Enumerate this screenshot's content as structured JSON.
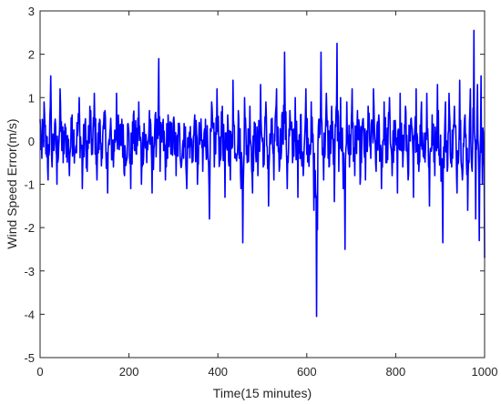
{
  "chart_data": {
    "type": "line",
    "title": "",
    "xlabel": "Time(15 minutes)",
    "ylabel": "Wind Speed Error(m/s)",
    "xlim": [
      0,
      1000
    ],
    "ylim": [
      -5,
      3
    ],
    "xticks": [
      0,
      200,
      400,
      600,
      800,
      1000
    ],
    "yticks": [
      -5,
      -4,
      -3,
      -2,
      -1,
      0,
      1,
      2,
      3
    ],
    "grid": false,
    "legend": "none",
    "series": [
      {
        "color": "#0000ff",
        "n_points": 1000,
        "x": [
          0,
          4,
          9,
          13,
          18,
          24,
          27,
          33,
          38,
          45,
          52,
          58,
          66,
          72,
          80,
          88,
          95,
          101,
          106,
          112,
          118,
          122,
          128,
          134,
          140,
          146,
          152,
          158,
          165,
          172,
          178,
          184,
          190,
          198,
          204,
          210,
          216,
          222,
          228,
          234,
          240,
          246,
          252,
          258,
          263,
          267,
          270,
          276,
          282,
          288,
          294,
          300,
          306,
          312,
          318,
          324,
          330,
          336,
          342,
          348,
          354,
          360,
          366,
          372,
          378,
          381,
          386,
          392,
          398,
          404,
          410,
          416,
          422,
          428,
          434,
          440,
          446,
          452,
          456,
          460,
          466,
          472,
          478,
          484,
          490,
          496,
          502,
          508,
          514,
          520,
          526,
          532,
          538,
          544,
          550,
          556,
          562,
          568,
          574,
          580,
          586,
          592,
          598,
          604,
          610,
          616,
          622,
          624,
          627,
          632,
          638,
          644,
          650,
          656,
          662,
          668,
          672,
          676,
          682,
          686,
          690,
          696,
          702,
          708,
          714,
          720,
          726,
          732,
          738,
          744,
          750,
          756,
          762,
          768,
          774,
          780,
          786,
          792,
          798,
          804,
          810,
          816,
          822,
          828,
          834,
          840,
          846,
          852,
          858,
          864,
          870,
          876,
          882,
          888,
          894,
          900,
          906,
          912,
          916,
          920,
          926,
          932,
          938,
          944,
          950,
          956,
          962,
          968,
          972,
          976,
          980,
          984,
          988,
          992,
          995,
          997,
          1000
        ],
        "y": [
          0.5,
          -0.4,
          0.9,
          -0.3,
          -0.9,
          1.5,
          -0.6,
          0.4,
          -1.0,
          1.2,
          -0.5,
          0.3,
          -0.8,
          0.6,
          -0.2,
          1.0,
          -1.1,
          0.4,
          -0.7,
          0.8,
          -0.3,
          1.1,
          -0.9,
          0.5,
          -0.4,
          0.7,
          -1.2,
          0.3,
          -0.6,
          1.1,
          -0.2,
          0.5,
          -0.8,
          0.4,
          -1.1,
          0.6,
          -0.3,
          0.9,
          -1.0,
          0.4,
          -0.5,
          0.7,
          -1.2,
          0.3,
          0.5,
          1.9,
          -0.7,
          0.4,
          -0.9,
          0.6,
          -0.3,
          0.5,
          -0.8,
          0.3,
          -0.6,
          0.4,
          -1.1,
          0.2,
          -0.5,
          0.6,
          -1.0,
          0.3,
          -0.7,
          0.5,
          -0.4,
          -1.8,
          0.9,
          -0.6,
          1.2,
          -0.5,
          0.8,
          -1.3,
          0.6,
          -0.9,
          1.4,
          -0.4,
          0.7,
          -1.1,
          -2.35,
          1.0,
          -0.5,
          0.8,
          -1.2,
          0.4,
          -0.8,
          1.3,
          -0.6,
          0.9,
          -1.5,
          0.5,
          -0.9,
          1.2,
          -0.7,
          0.6,
          2.05,
          -1.1,
          0.7,
          -0.5,
          1.0,
          -1.3,
          0.6,
          -0.8,
          1.2,
          -0.4,
          0.9,
          -1.6,
          -4.05,
          -2.05,
          0.5,
          2.05,
          -0.9,
          1.1,
          -0.6,
          0.8,
          -1.4,
          2.25,
          -0.7,
          1.0,
          -1.1,
          -2.5,
          0.9,
          -0.6,
          1.2,
          -0.8,
          0.7,
          -1.0,
          0.5,
          -0.9,
          0.8,
          -0.4,
          1.2,
          -0.7,
          0.6,
          -1.1,
          0.9,
          -0.5,
          1.0,
          -0.8,
          0.4,
          -1.2,
          1.1,
          -0.6,
          0.8,
          -0.9,
          0.5,
          -1.3,
          1.2,
          -0.7,
          0.9,
          -0.4,
          1.1,
          -1.5,
          0.6,
          -0.8,
          1.3,
          -0.5,
          -2.35,
          0.9,
          -0.7,
          1.1,
          -0.6,
          0.8,
          -1.2,
          1.4,
          -0.9,
          0.6,
          -1.6,
          1.2,
          -0.7,
          2.55,
          -1.8,
          1.3,
          -2.3,
          1.5,
          -1.0,
          0.2,
          -2.7
        ]
      }
    ]
  }
}
